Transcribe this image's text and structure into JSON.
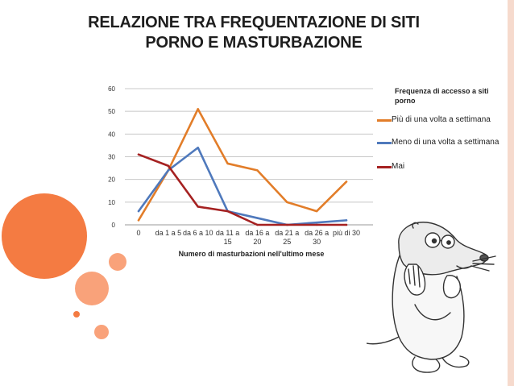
{
  "slide": {
    "title_line1": "RELAZIONE TRA FREQUENTAZIONE DI SITI",
    "title_line2": "PORNO E MASTURBAZIONE"
  },
  "colors": {
    "accent_orange": "#f47b42",
    "circle_light": "#f9a27a",
    "series_orange": "#e27d29",
    "series_blue": "#4f79bc",
    "series_red": "#a52121"
  },
  "chart_data": {
    "type": "line",
    "xlabel": "Numero di masturbazioni nell'ultimo mese",
    "ylabel": "",
    "ylim": [
      0,
      60
    ],
    "yticks": [
      0,
      10,
      20,
      30,
      40,
      50,
      60
    ],
    "grid": true,
    "legend_position": "right",
    "legend_title": "Frequenza di accesso a siti porno",
    "categories": [
      [
        "0"
      ],
      [
        "da 1 a 5"
      ],
      [
        "da 6 a 10"
      ],
      [
        "da 11 a",
        "15"
      ],
      [
        "da 16 a",
        "20"
      ],
      [
        "da 21 a",
        "25"
      ],
      [
        "da 26 a",
        "30"
      ],
      [
        "più di 30"
      ]
    ],
    "series": [
      {
        "name": "Più di una volta a settimana",
        "color": "#e27d29",
        "values": [
          2,
          24,
          51,
          27,
          24,
          10,
          6,
          19
        ]
      },
      {
        "name": "Meno di una volta a settimana",
        "color": "#4f79bc",
        "values": [
          6,
          24,
          34,
          6,
          3,
          0,
          1,
          2
        ]
      },
      {
        "name": "Mai",
        "color": "#a52121",
        "values": [
          31,
          26,
          8,
          6,
          0,
          0,
          0,
          0
        ]
      }
    ]
  },
  "legend": {
    "title": "Frequenza di accesso a siti porno",
    "items": [
      {
        "label": "Più di una volta a settimana",
        "color": "#e27d29"
      },
      {
        "label": "Meno di una volta a settimana",
        "color": "#4f79bc"
      },
      {
        "label": "Mai",
        "color": "#a52121"
      }
    ]
  }
}
